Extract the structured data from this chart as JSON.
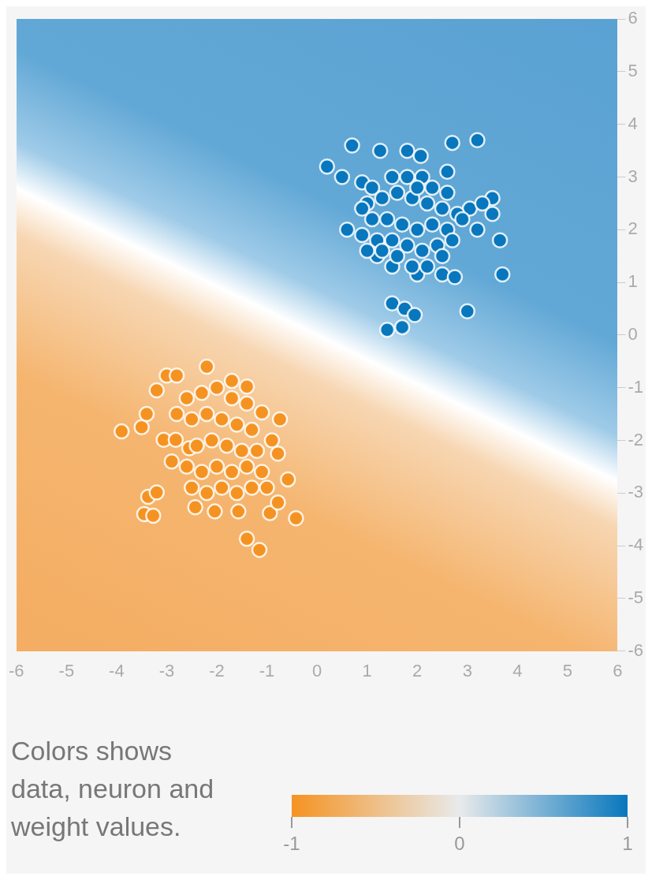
{
  "chart_data": {
    "type": "scatter",
    "clabel": "Colors shows data, neuron and weight values.",
    "clim": [
      -1,
      1
    ],
    "cticks": [
      -1,
      0,
      1
    ],
    "xlim": [
      -6,
      6
    ],
    "ylim": [
      -6,
      6
    ],
    "xticks": [
      -6,
      -5,
      -4,
      -3,
      -2,
      -1,
      0,
      1,
      2,
      3,
      4,
      5,
      6
    ],
    "yticks": [
      -6,
      -5,
      -4,
      -3,
      -2,
      -1,
      0,
      1,
      2,
      3,
      4,
      5,
      6
    ],
    "grid": false,
    "legend": false,
    "marker": "circle",
    "series": [
      {
        "x": [
          0.2,
          0.5,
          0.7,
          1.26,
          1.8,
          2.07,
          2.7,
          3.2,
          2.6,
          2.1,
          0.9,
          1.1,
          0.6,
          0.9,
          1.2,
          1.5,
          2.0,
          2.5,
          2.75,
          3.7,
          3.65,
          3.5,
          3.5,
          3.05,
          3.0,
          1.5,
          1.75,
          1.95,
          1.4,
          1.7,
          1.0,
          1.3,
          1.6,
          1.9,
          2.2,
          2.5,
          2.8,
          1.1,
          1.4,
          1.7,
          2.0,
          2.3,
          2.6,
          2.9,
          1.2,
          1.5,
          1.8,
          2.1,
          2.4,
          2.7,
          1.3,
          1.6,
          1.9,
          2.2,
          2.5,
          1.5,
          1.8,
          2.0,
          2.3,
          2.6,
          0.9,
          1.0,
          3.2,
          3.3
        ],
        "values": [
          3.2,
          3.0,
          3.6,
          3.5,
          3.5,
          3.4,
          3.65,
          3.7,
          3.1,
          3.0,
          2.9,
          2.8,
          2.0,
          1.9,
          1.5,
          1.3,
          1.15,
          1.15,
          1.1,
          1.15,
          1.8,
          2.3,
          2.6,
          2.4,
          0.45,
          0.6,
          0.5,
          0.38,
          0.1,
          0.15,
          2.5,
          2.6,
          2.7,
          2.6,
          2.5,
          2.4,
          2.3,
          2.2,
          2.2,
          2.1,
          2.0,
          2.1,
          2.0,
          2.2,
          1.8,
          1.8,
          1.7,
          1.6,
          1.7,
          1.8,
          1.6,
          1.5,
          1.3,
          1.3,
          1.5,
          3.0,
          3.0,
          2.8,
          2.8,
          2.7,
          2.4,
          1.6,
          2.0,
          2.5
        ],
        "cvalues": [
          1,
          1,
          1,
          1,
          1,
          1,
          1,
          1,
          1,
          1,
          1,
          1,
          1,
          1,
          1,
          1,
          1,
          1,
          1,
          1,
          1,
          1,
          1,
          1,
          1,
          1,
          1,
          1,
          1,
          1,
          1,
          1,
          1,
          1,
          1,
          1,
          1,
          1,
          1,
          1,
          1,
          1,
          1,
          1,
          1,
          1,
          1,
          1,
          1,
          1,
          1,
          1,
          1,
          1,
          1,
          1,
          1,
          1,
          1,
          1,
          1,
          1,
          1,
          1
        ]
      },
      {
        "x": [
          -3.9,
          -3.5,
          -3.4,
          -3.2,
          -3.0,
          -2.8,
          -2.2,
          -1.7,
          -1.4,
          -1.1,
          -0.74,
          -0.78,
          -0.58,
          -0.42,
          -1.4,
          -1.15,
          -3.45,
          -3.27,
          -3.37,
          -3.2,
          -2.43,
          -2.04,
          -1.57,
          -3.06,
          -2.82,
          -0.94,
          -0.78,
          -2.6,
          -2.3,
          -2.0,
          -1.7,
          -1.4,
          -2.8,
          -2.5,
          -2.2,
          -1.9,
          -1.6,
          -1.3,
          -2.55,
          -2.4,
          -2.1,
          -1.8,
          -1.5,
          -1.2,
          -0.9,
          -2.6,
          -2.3,
          -2.0,
          -1.7,
          -1.4,
          -1.1,
          -2.5,
          -2.2,
          -1.9,
          -1.6,
          -1.3,
          -1.0,
          -2.9
        ],
        "values": [
          -1.83,
          -1.75,
          -1.5,
          -1.05,
          -0.77,
          -0.77,
          -0.6,
          -0.87,
          -0.98,
          -1.47,
          -1.6,
          -2.25,
          -2.74,
          -3.48,
          -3.87,
          -4.08,
          -3.4,
          -3.43,
          -3.07,
          -2.99,
          -3.27,
          -3.35,
          -3.35,
          -1.99,
          -1.99,
          -3.38,
          -3.18,
          -1.2,
          -1.1,
          -1.0,
          -1.2,
          -1.3,
          -1.5,
          -1.6,
          -1.5,
          -1.6,
          -1.7,
          -1.8,
          -2.15,
          -2.1,
          -2.0,
          -2.1,
          -2.2,
          -2.2,
          -2.0,
          -2.5,
          -2.6,
          -2.5,
          -2.6,
          -2.5,
          -2.6,
          -2.9,
          -3.0,
          -2.9,
          -3.0,
          -2.9,
          -2.9,
          -2.4
        ],
        "cvalues": [
          -1,
          -1,
          -1,
          -1,
          -1,
          -1,
          -1,
          -1,
          -1,
          -1,
          -1,
          -1,
          -1,
          -1,
          -1,
          -1,
          -1,
          -1,
          -1,
          -1,
          -1,
          -1,
          -1,
          -1,
          -1,
          -1,
          -1,
          -1,
          -1,
          -1,
          -1,
          -1,
          -1,
          -1,
          -1,
          -1,
          -1,
          -1,
          -1,
          -1,
          -1,
          -1,
          -1,
          -1,
          -1,
          -1,
          -1,
          -1,
          -1,
          -1,
          -1,
          -1,
          -1,
          -1,
          -1,
          -1,
          -1,
          -1
        ]
      }
    ]
  }
}
